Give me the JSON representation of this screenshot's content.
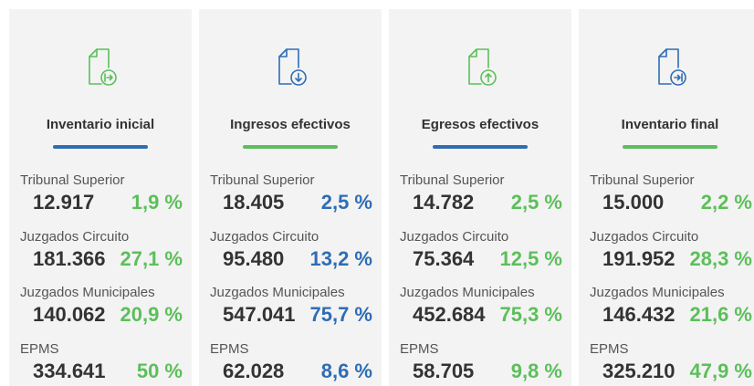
{
  "cards": [
    {
      "title": "Inventario inicial",
      "rows": [
        {
          "label": "Tribunal Superior",
          "value": "12.917",
          "percent": "1,9 %"
        },
        {
          "label": "Juzgados Circuito",
          "value": "181.366",
          "percent": "27,1 %"
        },
        {
          "label": "Juzgados Municipales",
          "value": "140.062",
          "percent": "20,9 %"
        },
        {
          "label": "EPMS",
          "value": "334.641",
          "percent": "50 %"
        }
      ]
    },
    {
      "title": "Ingresos efectivos",
      "rows": [
        {
          "label": "Tribunal Superior",
          "value": "18.405",
          "percent": "2,5 %"
        },
        {
          "label": "Juzgados Circuito",
          "value": "95.480",
          "percent": "13,2 %"
        },
        {
          "label": "Juzgados Municipales",
          "value": "547.041",
          "percent": "75,7 %"
        },
        {
          "label": "EPMS",
          "value": "62.028",
          "percent": "8,6 %"
        }
      ]
    },
    {
      "title": "Egresos efectivos",
      "rows": [
        {
          "label": "Tribunal Superior",
          "value": "14.782",
          "percent": "2,5 %"
        },
        {
          "label": "Juzgados Circuito",
          "value": "75.364",
          "percent": "12,5 %"
        },
        {
          "label": "Juzgados Municipales",
          "value": "452.684",
          "percent": "75,3 %"
        },
        {
          "label": "EPMS",
          "value": "58.705",
          "percent": "9,8 %"
        }
      ]
    },
    {
      "title": "Inventario final",
      "rows": [
        {
          "label": "Tribunal Superior",
          "value": "15.000",
          "percent": "2,2 %"
        },
        {
          "label": "Juzgados Circuito",
          "value": "191.952",
          "percent": "28,3 %"
        },
        {
          "label": "Juzgados Municipales",
          "value": "146.432",
          "percent": "21,6 %"
        },
        {
          "label": "EPMS",
          "value": "325.210",
          "percent": "47,9 %"
        }
      ]
    }
  ]
}
